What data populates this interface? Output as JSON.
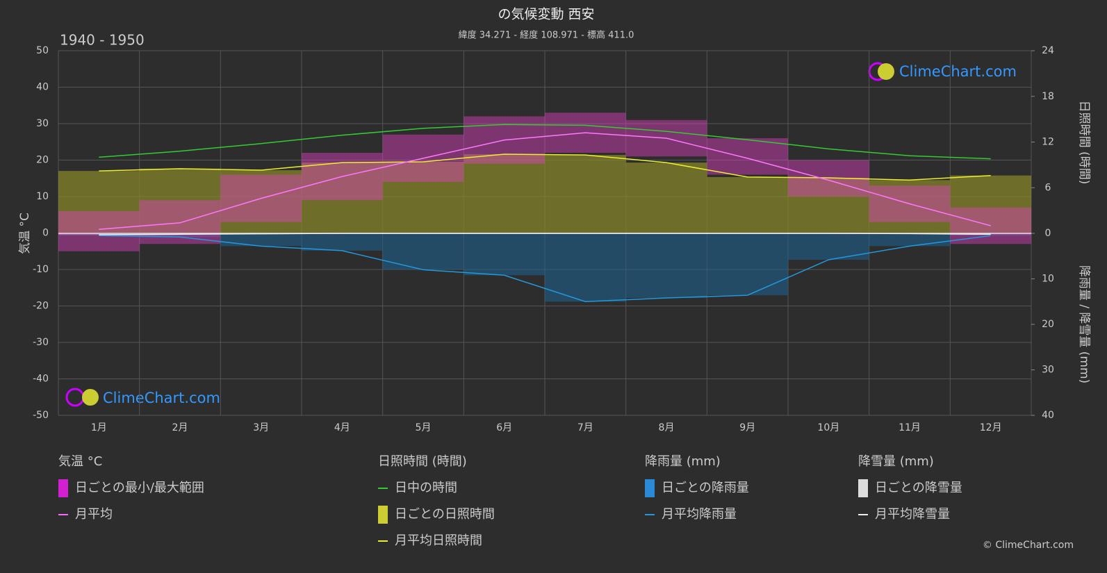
{
  "chart_data": {
    "type": "climate",
    "title": "の気候変動 西安",
    "subtitle": "緯度 34.271 - 経度 108.971 - 標高 411.0",
    "period": "1940 - 1950",
    "y_label": "気温 °C",
    "y2_label": "日照時間 (時間)",
    "y3_label": "降雨量 / 降雪量 (mm)",
    "watermark": "ClimeChart.com",
    "copyright": "© ClimeChart.com",
    "categories": [
      "1月",
      "2月",
      "3月",
      "4月",
      "5月",
      "6月",
      "7月",
      "8月",
      "9月",
      "10月",
      "11月",
      "12月"
    ],
    "ylim": [
      -50,
      50
    ],
    "yticks": [
      -50,
      -40,
      -30,
      -20,
      -10,
      0,
      10,
      20,
      30,
      40,
      50
    ],
    "sunshine_lim": [
      0,
      24
    ],
    "sunshine_ticks": [
      0,
      6,
      12,
      18,
      24
    ],
    "precip_lim": [
      0,
      40
    ],
    "precip_ticks": [
      10,
      20,
      30,
      40
    ],
    "temp_min": [
      -5,
      -3,
      3,
      9,
      14,
      19,
      22,
      21,
      16,
      10,
      3,
      -3
    ],
    "temp_max": [
      6,
      9,
      16,
      22,
      27,
      32,
      33,
      31,
      26,
      20,
      13,
      7
    ],
    "temp_mean": [
      1,
      2.8,
      9.5,
      15.5,
      20.5,
      25.5,
      27.5,
      26,
      20.5,
      14.5,
      8,
      2
    ],
    "daylight": [
      10.0,
      10.8,
      11.8,
      12.9,
      13.8,
      14.3,
      14.2,
      13.4,
      12.3,
      11.1,
      10.2,
      9.8
    ],
    "sunshine": [
      8.2,
      8.5,
      8.3,
      9.3,
      9.4,
      10.4,
      10.3,
      9.3,
      7.4,
      7.3,
      7.0,
      7.6
    ],
    "rain": [
      0.5,
      0.8,
      2.8,
      3.8,
      8,
      9.2,
      15,
      14.2,
      13.6,
      5.8,
      2.8,
      0.5
    ],
    "snow": [
      0.3,
      0.2,
      0.1,
      0,
      0,
      0,
      0,
      0,
      0,
      0,
      0.05,
      0.2
    ],
    "legend": [
      {
        "title": "気温 °C",
        "items": [
          "日ごとの最小/最大範囲",
          "月平均"
        ]
      },
      {
        "title": "日照時間 (時間)",
        "items": [
          "日中の時間",
          "日ごとの日照時間",
          "月平均日照時間"
        ]
      },
      {
        "title": "降雨量 (mm)",
        "items": [
          "日ごとの降雨量",
          "月平均降雨量"
        ]
      },
      {
        "title": "降雪量 (mm)",
        "items": [
          "日ごとの降雪量",
          "月平均降雪量"
        ]
      }
    ]
  }
}
